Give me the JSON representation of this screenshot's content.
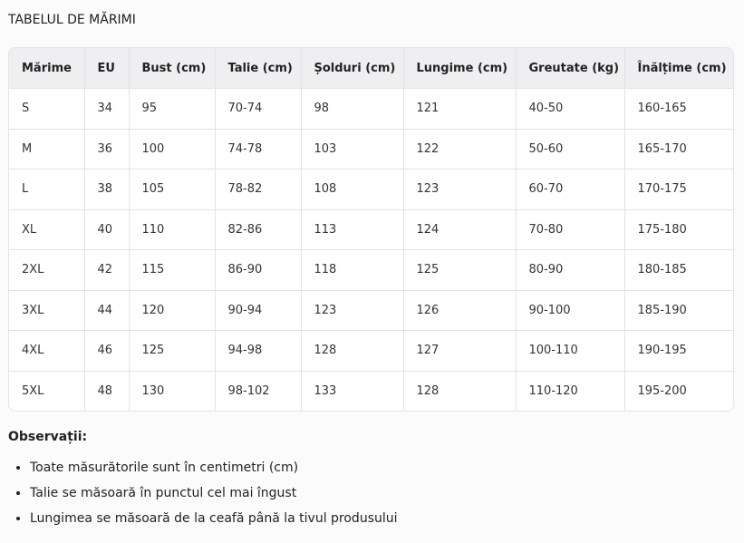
{
  "title": "TABELUL DE MĂRIMI",
  "table": {
    "headers": [
      "Mărime",
      "EU",
      "Bust (cm)",
      "Talie (cm)",
      "Șolduri (cm)",
      "Lungime (cm)",
      "Greutate (kg)",
      "Înălțime (cm)"
    ],
    "rows": [
      [
        "S",
        "34",
        "95",
        "70-74",
        "98",
        "121",
        "40-50",
        "160-165"
      ],
      [
        "M",
        "36",
        "100",
        "74-78",
        "103",
        "122",
        "50-60",
        "165-170"
      ],
      [
        "L",
        "38",
        "105",
        "78-82",
        "108",
        "123",
        "60-70",
        "170-175"
      ],
      [
        "XL",
        "40",
        "110",
        "82-86",
        "113",
        "124",
        "70-80",
        "175-180"
      ],
      [
        "2XL",
        "42",
        "115",
        "86-90",
        "118",
        "125",
        "80-90",
        "180-185"
      ],
      [
        "3XL",
        "44",
        "120",
        "90-94",
        "123",
        "126",
        "90-100",
        "185-190"
      ],
      [
        "4XL",
        "46",
        "125",
        "94-98",
        "128",
        "127",
        "100-110",
        "190-195"
      ],
      [
        "5XL",
        "48",
        "130",
        "98-102",
        "133",
        "128",
        "110-120",
        "195-200"
      ]
    ]
  },
  "notes": {
    "heading": "Observații:",
    "items": [
      "Toate măsurătorile sunt în centimetri (cm)",
      "Talie se măsoară în punctul cel mai îngust",
      "Lungimea se măsoară de la ceafă până la tivul produsului"
    ]
  }
}
